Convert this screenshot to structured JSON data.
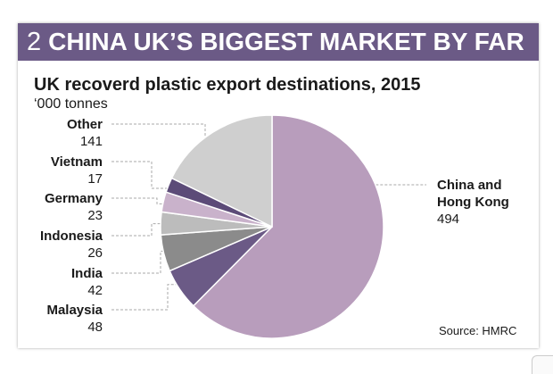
{
  "header": {
    "number": "2",
    "title": "CHINA UK’S BIGGEST MARKET BY FAR"
  },
  "subtitle": "UK recoverd plastic export destinations, 2015",
  "unit": "‘000 tonnes",
  "source": "Source: HMRC",
  "colors": {
    "banner": "#6b5a86",
    "leader": "#aaaaaa"
  },
  "chart_data": {
    "type": "pie",
    "title": "UK recoverd plastic export destinations, 2015",
    "unit": "‘000 tonnes",
    "slices": [
      {
        "name": "China and Hong Kong",
        "name_lines": [
          "China and",
          "Hong Kong"
        ],
        "value": 494,
        "color": "#b89dbc"
      },
      {
        "name": "Malaysia",
        "name_lines": [
          "Malaysia"
        ],
        "value": 48,
        "color": "#6b5a86"
      },
      {
        "name": "India",
        "name_lines": [
          "India"
        ],
        "value": 42,
        "color": "#8b8b8b"
      },
      {
        "name": "Indonesia",
        "name_lines": [
          "Indonesia"
        ],
        "value": 26,
        "color": "#bcbcbc"
      },
      {
        "name": "Germany",
        "name_lines": [
          "Germany"
        ],
        "value": 23,
        "color": "#c9b2cb"
      },
      {
        "name": "Vietnam",
        "name_lines": [
          "Vietnam"
        ],
        "value": 17,
        "color": "#5c4b78"
      },
      {
        "name": "Other",
        "name_lines": [
          "Other"
        ],
        "value": 141,
        "color": "#cfcfcf"
      }
    ]
  }
}
